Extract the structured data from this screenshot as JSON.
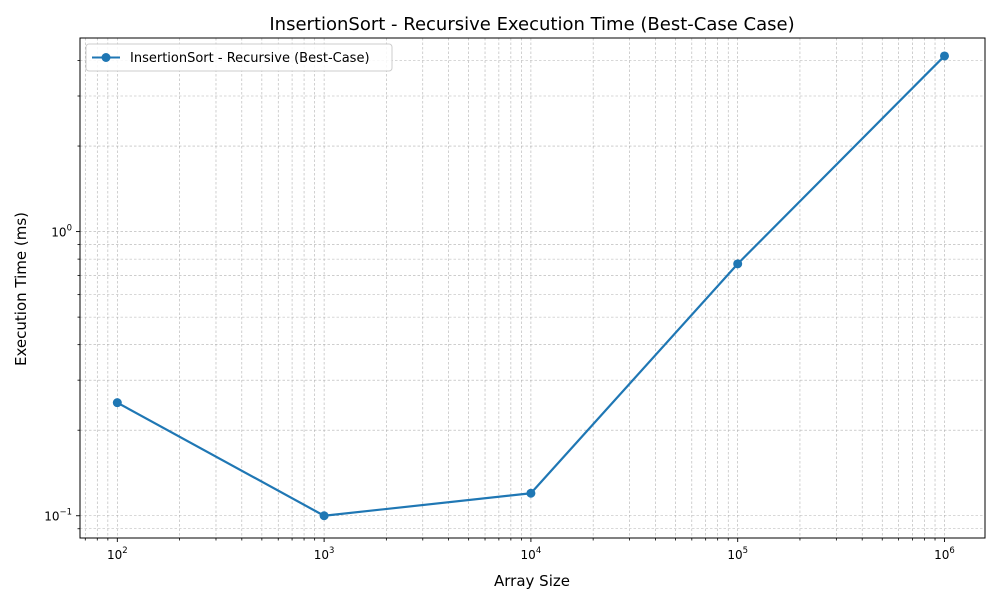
{
  "chart_data": {
    "type": "line",
    "title": "InsertionSort - Recursive Execution Time (Best-Case Case)",
    "xlabel": "Array Size",
    "ylabel": "Execution Time (ms)",
    "xscale": "log",
    "yscale": "log",
    "xlim": [
      66,
      1570000
    ],
    "ylim": [
      0.0835,
      4.8
    ],
    "grid": true,
    "grid_which": "both",
    "legend_position": "upper-left",
    "x_major_ticks": [
      {
        "value": 100,
        "base": "10",
        "exp": "2"
      },
      {
        "value": 1000,
        "base": "10",
        "exp": "3"
      },
      {
        "value": 10000,
        "base": "10",
        "exp": "4"
      },
      {
        "value": 100000,
        "base": "10",
        "exp": "5"
      },
      {
        "value": 1000000,
        "base": "10",
        "exp": "6"
      }
    ],
    "y_major_ticks": [
      {
        "value": 0.1,
        "base": "10",
        "exp": "−1"
      },
      {
        "value": 1,
        "base": "10",
        "exp": "0"
      }
    ],
    "series": [
      {
        "name": "InsertionSort - Recursive (Best-Case)",
        "color": "#1f77b4",
        "marker": "circle",
        "x": [
          100,
          1000,
          10000,
          100000,
          1000000
        ],
        "y": [
          0.25,
          0.1,
          0.12,
          0.77,
          4.15
        ]
      }
    ]
  }
}
